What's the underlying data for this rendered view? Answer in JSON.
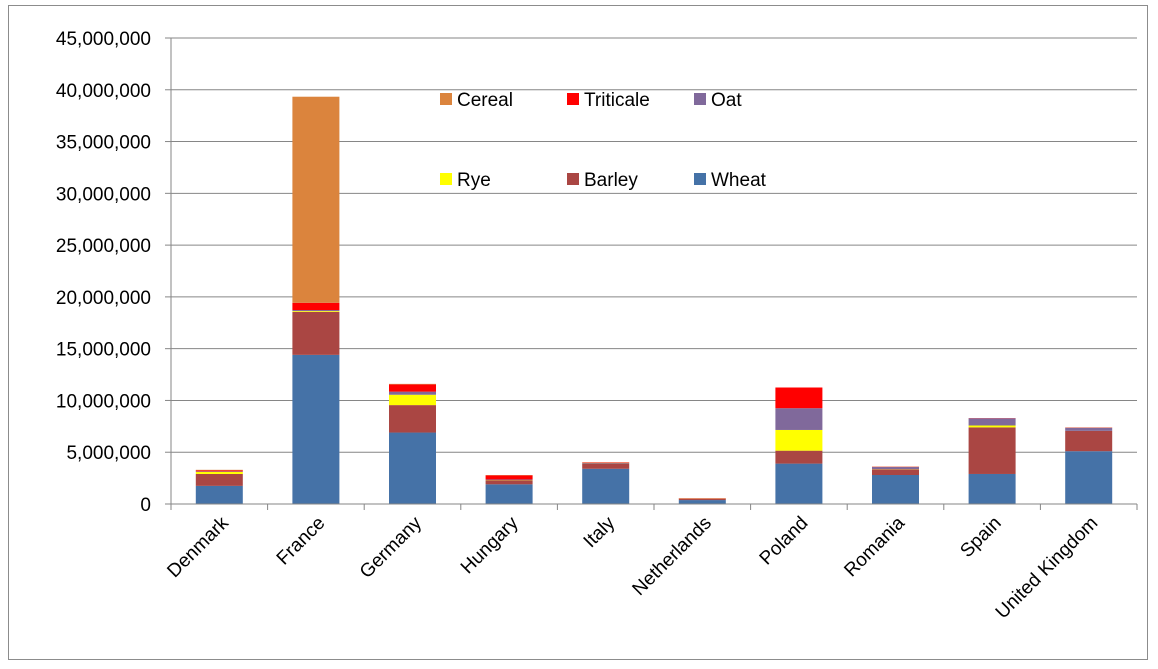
{
  "chart_data": {
    "type": "bar",
    "stacked": true,
    "categories": [
      "Denmark",
      "France",
      "Germany",
      "Hungary",
      "Italy",
      "Netherlands",
      "Poland",
      "Romania",
      "Spain",
      "United Kingdom"
    ],
    "series": [
      {
        "name": "Wheat",
        "color": "#4572A7",
        "values": [
          1750000,
          14400000,
          6900000,
          1900000,
          3400000,
          380000,
          3900000,
          2800000,
          2900000,
          5100000
        ]
      },
      {
        "name": "Barley",
        "color": "#AA4643",
        "values": [
          1150000,
          4150000,
          2650000,
          400000,
          500000,
          120000,
          1250000,
          550000,
          4500000,
          1950000
        ]
      },
      {
        "name": "Rye",
        "color": "#FFFF00",
        "values": [
          200000,
          80000,
          1000000,
          20000,
          10000,
          10000,
          2000000,
          20000,
          180000,
          10000
        ]
      },
      {
        "name": "Oat",
        "color": "#80699B",
        "values": [
          50000,
          100000,
          300000,
          50000,
          50000,
          10000,
          2100000,
          200000,
          700000,
          300000
        ]
      },
      {
        "name": "Triticale",
        "color": "#FF0000",
        "values": [
          100000,
          700000,
          700000,
          400000,
          40000,
          30000,
          2000000,
          30000,
          20000,
          20000
        ]
      },
      {
        "name": "Cereal",
        "color": "#DB843D",
        "values": [
          50000,
          19900000,
          50000,
          30000,
          30000,
          30000,
          0,
          20000,
          0,
          20000
        ]
      }
    ],
    "ylim": [
      0,
      45000000
    ],
    "yticks": [
      0,
      5000000,
      10000000,
      15000000,
      20000000,
      25000000,
      30000000,
      35000000,
      40000000,
      45000000
    ],
    "ytick_labels": [
      "0",
      "5,000,000",
      "10,000,000",
      "15,000,000",
      "20,000,000",
      "25,000,000",
      "30,000,000",
      "35,000,000",
      "40,000,000",
      "45,000,000"
    ],
    "grid": true,
    "legend": {
      "position": "top-center",
      "rows": [
        [
          "Cereal",
          "Triticale",
          "Oat"
        ],
        [
          "Rye",
          "Barley",
          "Wheat"
        ]
      ]
    },
    "title": "",
    "xlabel": "",
    "ylabel": ""
  }
}
